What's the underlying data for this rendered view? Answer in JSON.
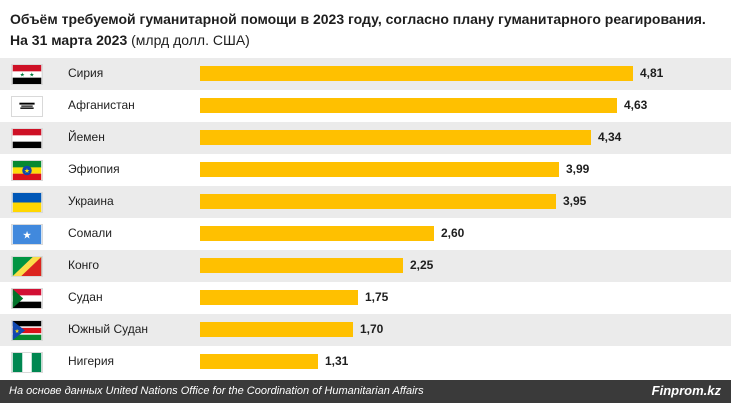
{
  "title": {
    "bold": "Объём требуемой гуманитарной помощи в 2023 году, согласно плану гуманитарного реагирования. На 31 марта 2023",
    "normal": " (млрд долл. США)"
  },
  "chart_data": {
    "type": "bar",
    "orientation": "horizontal",
    "title": "Объём требуемой гуманитарной помощи в 2023 году, согласно плану гуманитарного реагирования. На 31 марта 2023 (млрд долл. США)",
    "categories": [
      "Сирия",
      "Афганистан",
      "Йемен",
      "Эфиопия",
      "Украина",
      "Сомали",
      "Конго",
      "Судан",
      "Южный Судан",
      "Нигерия"
    ],
    "values": [
      4.81,
      4.63,
      4.34,
      3.99,
      3.95,
      2.6,
      2.25,
      1.75,
      1.7,
      1.31
    ],
    "value_labels": [
      "4,81",
      "4,63",
      "4,34",
      "3,99",
      "3,95",
      "2,60",
      "2,25",
      "1,75",
      "1,70",
      "1,31"
    ],
    "xlim": [
      0,
      5
    ],
    "bar_color": "#ffc000",
    "grid": false,
    "flags": [
      "syria-flag-icon",
      "afghanistan-flag-icon",
      "yemen-flag-icon",
      "ethiopia-flag-icon",
      "ukraine-flag-icon",
      "somalia-flag-icon",
      "congo-flag-icon",
      "sudan-flag-icon",
      "south-sudan-flag-icon",
      "nigeria-flag-icon"
    ]
  },
  "footer": {
    "source": "На основе данных United Nations Office for the Coordination of Humanitarian Affairs",
    "brand": "Finprom.kz"
  },
  "colors": {
    "bar": "#ffc000",
    "row_shade": "#ebebeb",
    "footer_bg": "#3a3a3a"
  }
}
